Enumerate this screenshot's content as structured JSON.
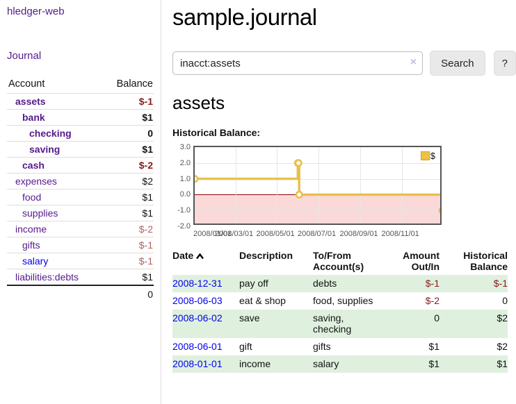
{
  "sidebar": {
    "brand": "hledger-web",
    "journal_link": "Journal",
    "accounts_table": {
      "headers": {
        "account": "Account",
        "balance": "Balance"
      },
      "rows": [
        {
          "name": "assets",
          "balance": "$-1"
        },
        {
          "name": "bank",
          "balance": "$1"
        },
        {
          "name": "checking",
          "balance": "0"
        },
        {
          "name": "saving",
          "balance": "$1"
        },
        {
          "name": "cash",
          "balance": "$-2"
        },
        {
          "name": "expenses",
          "balance": "$2"
        },
        {
          "name": "food",
          "balance": "$1"
        },
        {
          "name": "supplies",
          "balance": "$1"
        },
        {
          "name": "income",
          "balance": "$-2"
        },
        {
          "name": "gifts",
          "balance": "$-1"
        },
        {
          "name": "salary",
          "balance": "$-1"
        },
        {
          "name": "liabilities:debts",
          "balance": "$1"
        }
      ],
      "total": "0"
    }
  },
  "main": {
    "title": "sample.journal",
    "search": {
      "value": "inacct:assets",
      "clear_icon": "×",
      "search_button": "Search",
      "help_button": "?"
    },
    "account_heading": "assets",
    "chart_heading": "Historical Balance:",
    "register": {
      "headers": {
        "date": "Date",
        "description": "Description",
        "tofrom": "To/From Account(s)",
        "amount": "Amount Out/In",
        "balance": "Historical Balance"
      },
      "rows": [
        {
          "date": "2008-12-31",
          "description": "pay off",
          "accounts": "debts",
          "amount": "$-1",
          "balance": "$-1"
        },
        {
          "date": "2008-06-03",
          "description": "eat & shop",
          "accounts": "food, supplies",
          "amount": "$-2",
          "balance": "0"
        },
        {
          "date": "2008-06-02",
          "description": "save",
          "accounts": "saving, checking",
          "amount": "0",
          "balance": "$2"
        },
        {
          "date": "2008-06-01",
          "description": "gift",
          "accounts": "gifts",
          "amount": "$1",
          "balance": "$2"
        },
        {
          "date": "2008-01-01",
          "description": "income",
          "accounts": "salary",
          "amount": "$1",
          "balance": "$1"
        }
      ]
    }
  },
  "chart_data": {
    "type": "line",
    "title": "Historical Balance:",
    "step": true,
    "series": [
      {
        "name": "$",
        "color": "#e8c04a",
        "points": [
          [
            "2008-01-01",
            1
          ],
          [
            "2008-06-01",
            2
          ],
          [
            "2008-06-02",
            2
          ],
          [
            "2008-06-03",
            0
          ],
          [
            "2008-12-31",
            -1
          ]
        ]
      }
    ],
    "xrange": [
      "2008-01-01",
      "2009-01-01"
    ],
    "ylim": [
      -2,
      3
    ],
    "yticks": [
      3,
      2,
      1,
      0,
      -1,
      -2
    ],
    "xticks": [
      "2008/01/01",
      "2008/03/01",
      "2008/05/01",
      "2008/07/01",
      "2008/09/01",
      "2008/11/01"
    ],
    "legend_position": "top-right",
    "grid": true,
    "negative_region_color": "#fbd9d9",
    "zero_line_color": "#8b0000"
  },
  "colors": {
    "link_purple": "#551a8b",
    "link_blue": "#0000ee",
    "negative_strong": "#8b1a1a",
    "negative_soft": "#b35f5f",
    "row_stripe_green": "#dff0df",
    "series_gold": "#e8c04a"
  }
}
